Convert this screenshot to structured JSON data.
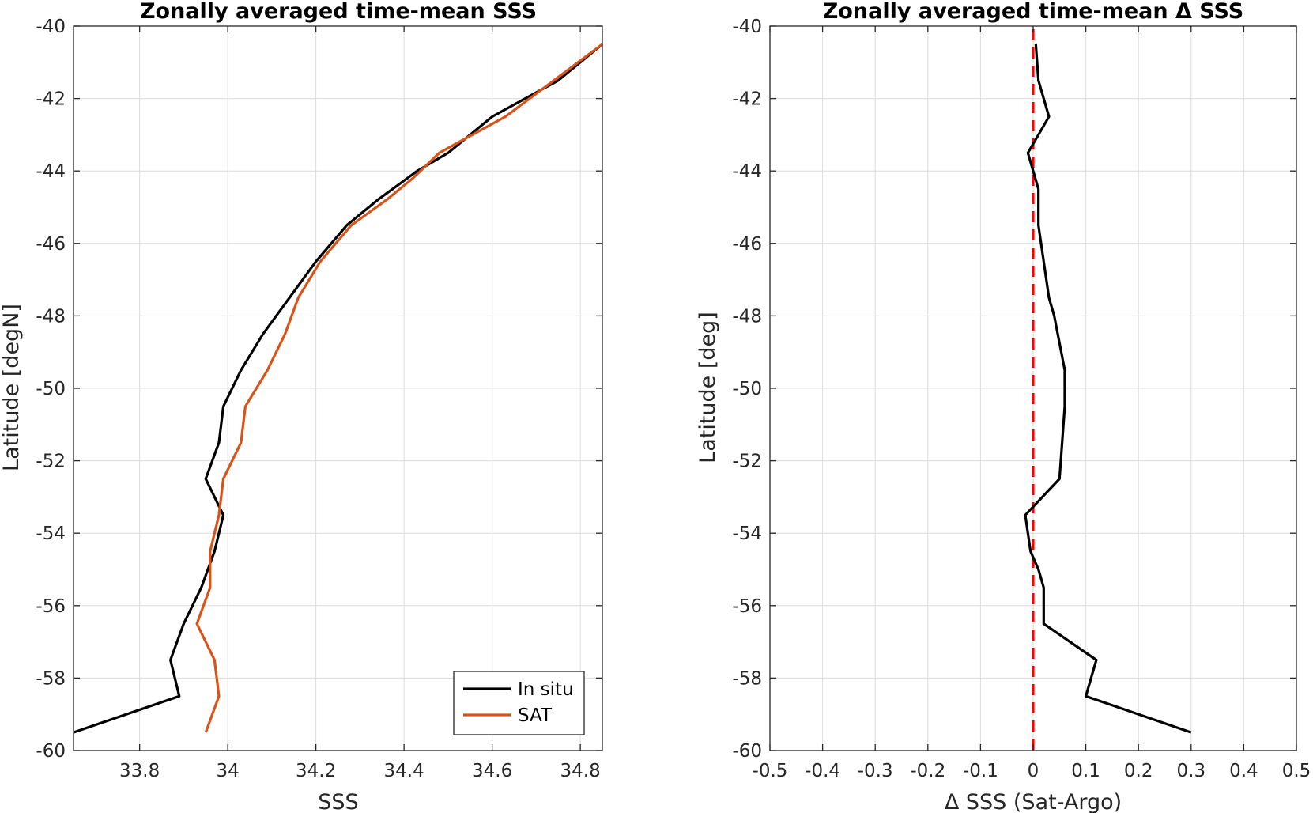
{
  "chart_data": [
    {
      "type": "line",
      "title": "Zonally averaged time-mean SSS",
      "xlabel": "SSS",
      "ylabel": "Latitude [degN]",
      "xlim": [
        33.65,
        34.85
      ],
      "ylim": [
        -60,
        -40
      ],
      "x_ticks": [
        33.8,
        34,
        34.2,
        34.4,
        34.6,
        34.8
      ],
      "y_ticks": [
        -60,
        -58,
        -56,
        -54,
        -52,
        -50,
        -48,
        -46,
        -44,
        -42,
        -40
      ],
      "grid": true,
      "legend_position": "bottom-right",
      "series": [
        {
          "name": "In situ",
          "color": "#000000",
          "points": [
            [
              33.65,
              -59.5
            ],
            [
              33.89,
              -58.5
            ],
            [
              33.87,
              -57.5
            ],
            [
              33.9,
              -56.5
            ],
            [
              33.94,
              -55.5
            ],
            [
              33.97,
              -54.5
            ],
            [
              33.99,
              -53.5
            ],
            [
              33.95,
              -52.5
            ],
            [
              33.98,
              -51.5
            ],
            [
              33.99,
              -50.5
            ],
            [
              34.03,
              -49.5
            ],
            [
              34.08,
              -48.5
            ],
            [
              34.14,
              -47.5
            ],
            [
              34.2,
              -46.5
            ],
            [
              34.27,
              -45.5
            ],
            [
              34.34,
              -44.8
            ],
            [
              34.43,
              -44.0
            ],
            [
              34.5,
              -43.5
            ],
            [
              34.6,
              -42.5
            ],
            [
              34.75,
              -41.5
            ],
            [
              34.85,
              -40.5
            ]
          ]
        },
        {
          "name": "SAT",
          "color": "#D95319",
          "points": [
            [
              33.95,
              -59.5
            ],
            [
              33.98,
              -58.5
            ],
            [
              33.97,
              -57.5
            ],
            [
              33.93,
              -56.5
            ],
            [
              33.96,
              -55.5
            ],
            [
              33.96,
              -54.5
            ],
            [
              33.98,
              -53.5
            ],
            [
              33.99,
              -52.5
            ],
            [
              34.03,
              -51.5
            ],
            [
              34.04,
              -50.5
            ],
            [
              34.09,
              -49.5
            ],
            [
              34.13,
              -48.5
            ],
            [
              34.16,
              -47.5
            ],
            [
              34.21,
              -46.5
            ],
            [
              34.28,
              -45.5
            ],
            [
              34.36,
              -44.8
            ],
            [
              34.42,
              -44.2
            ],
            [
              34.48,
              -43.5
            ],
            [
              34.63,
              -42.5
            ],
            [
              34.74,
              -41.5
            ],
            [
              34.85,
              -40.5
            ]
          ]
        }
      ]
    },
    {
      "type": "line",
      "title": "Zonally averaged time-mean Δ SSS",
      "xlabel": "Δ SSS (Sat-Argo)",
      "ylabel": "Latitude [deg]",
      "xlim": [
        -0.5,
        0.5
      ],
      "ylim": [
        -60,
        -40
      ],
      "x_ticks": [
        -0.5,
        -0.4,
        -0.3,
        -0.2,
        -0.1,
        0,
        0.1,
        0.2,
        0.3,
        0.4,
        0.5
      ],
      "y_ticks": [
        -60,
        -58,
        -56,
        -54,
        -52,
        -50,
        -48,
        -46,
        -44,
        -42,
        -40
      ],
      "grid": true,
      "reference_line": {
        "x": 0,
        "color": "#FF0000",
        "style": "dashed"
      },
      "series": [
        {
          "color": "#000000",
          "points": [
            [
              0.3,
              -59.5
            ],
            [
              0.1,
              -58.5
            ],
            [
              0.12,
              -57.5
            ],
            [
              0.02,
              -56.5
            ],
            [
              0.02,
              -55.5
            ],
            [
              0.01,
              -55.0
            ],
            [
              -0.005,
              -54.5
            ],
            [
              -0.015,
              -53.5
            ],
            [
              0.05,
              -52.5
            ],
            [
              0.055,
              -51.5
            ],
            [
              0.06,
              -50.5
            ],
            [
              0.06,
              -49.5
            ],
            [
              0.04,
              -48.0
            ],
            [
              0.03,
              -47.5
            ],
            [
              0.02,
              -46.5
            ],
            [
              0.01,
              -45.5
            ],
            [
              0.01,
              -44.5
            ],
            [
              0.0,
              -44.0
            ],
            [
              -0.01,
              -43.5
            ],
            [
              0.03,
              -42.5
            ],
            [
              0.01,
              -41.5
            ],
            [
              0.005,
              -40.5
            ]
          ]
        }
      ]
    }
  ]
}
